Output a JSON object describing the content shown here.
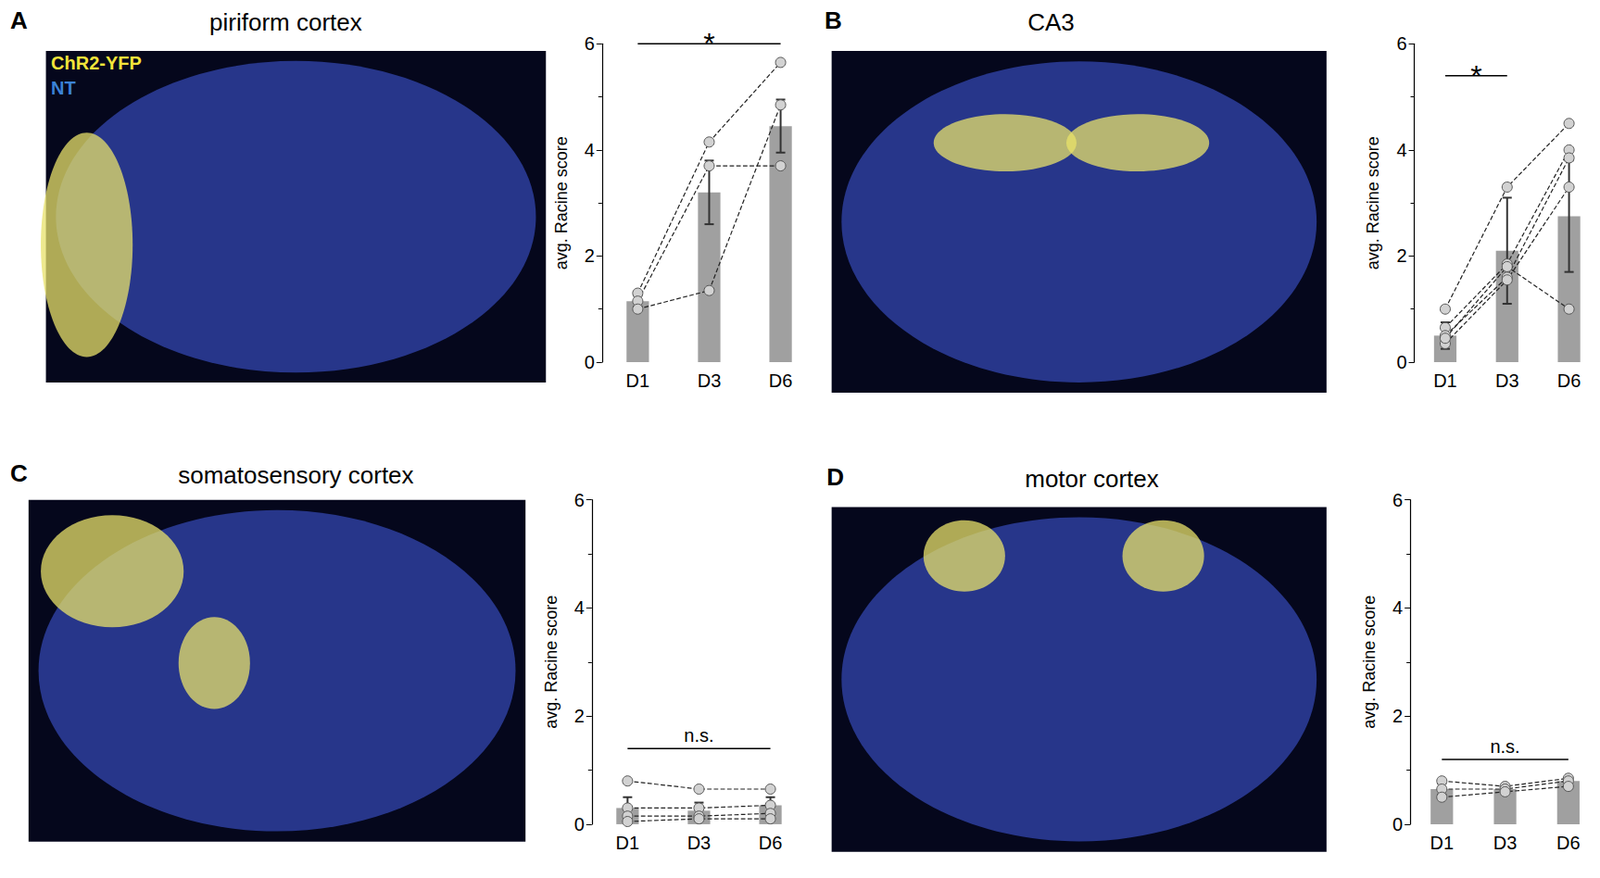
{
  "chart_data": [
    {
      "panel": "A",
      "title": "piriform cortex",
      "type": "bar",
      "image_legend": [
        {
          "text": "ChR2-YFP",
          "color": "#f2e43a"
        },
        {
          "text": "NT",
          "color": "#3b82d6"
        }
      ],
      "categories": [
        "D1",
        "D3",
        "D6"
      ],
      "values": [
        1.15,
        3.2,
        4.45
      ],
      "errors": [
        0.1,
        0.6,
        0.5
      ],
      "color": "#a0a0a0",
      "marker": "circle",
      "line_style": "dashed",
      "points": [
        [
          1.3,
          4.15,
          5.65
        ],
        [
          1.15,
          3.7,
          3.7
        ],
        [
          1.0,
          1.35,
          4.85
        ]
      ],
      "ylabel": "avg. Racine score",
      "ylim": [
        0,
        6
      ],
      "yticks": [
        0,
        2,
        4,
        6
      ],
      "annotations": [
        {
          "text": "*",
          "from": "D1",
          "to": "D6",
          "y": 6.0
        }
      ]
    },
    {
      "panel": "B",
      "title": "CA3",
      "type": "bar",
      "categories": [
        "D1",
        "D3",
        "D6"
      ],
      "values": [
        0.5,
        2.1,
        2.75
      ],
      "errors": [
        0.25,
        1.0,
        1.05
      ],
      "color": "#a0a0a0",
      "marker": "circle",
      "line_style": "dashed",
      "points": [
        [
          1.0,
          3.3,
          4.5
        ],
        [
          0.65,
          1.85,
          4.0
        ],
        [
          0.5,
          1.6,
          3.85
        ],
        [
          0.35,
          1.55,
          3.3
        ],
        [
          0.45,
          1.8,
          1.0
        ]
      ],
      "ylabel": "avg. Racine score",
      "ylim": [
        0,
        6
      ],
      "yticks": [
        0,
        2,
        4,
        6
      ],
      "annotations": [
        {
          "text": "*",
          "from": "D1",
          "to": "D3",
          "y": 5.4
        }
      ]
    },
    {
      "panel": "C",
      "title": "somatosensory cortex",
      "type": "bar",
      "categories": [
        "D1",
        "D3",
        "D6"
      ],
      "values": [
        0.3,
        0.25,
        0.35
      ],
      "errors": [
        0.2,
        0.15,
        0.15
      ],
      "color": "#a0a0a0",
      "marker": "circle",
      "line_style": "dashed",
      "points": [
        [
          0.8,
          0.65,
          0.65
        ],
        [
          0.3,
          0.3,
          0.35
        ],
        [
          0.15,
          0.15,
          0.2
        ],
        [
          0.05,
          0.1,
          0.1
        ]
      ],
      "ylabel": "avg. Racine score",
      "ylim": [
        0,
        6
      ],
      "yticks": [
        0,
        2,
        4,
        6
      ],
      "annotations": [
        {
          "text": "n.s.",
          "from": "D1",
          "to": "D6",
          "y": 1.4
        }
      ]
    },
    {
      "panel": "D",
      "title": "motor cortex",
      "type": "bar",
      "categories": [
        "D1",
        "D3",
        "D6"
      ],
      "values": [
        0.65,
        0.65,
        0.8
      ],
      "errors": [
        0.1,
        0.05,
        0.05
      ],
      "color": "#a0a0a0",
      "marker": "circle",
      "line_style": "dashed",
      "points": [
        [
          0.8,
          0.7,
          0.85
        ],
        [
          0.65,
          0.65,
          0.8
        ],
        [
          0.5,
          0.6,
          0.7
        ]
      ],
      "ylabel": "avg. Racine score",
      "ylim": [
        0,
        6
      ],
      "yticks": [
        0,
        2,
        4,
        6
      ],
      "annotations": [
        {
          "text": "n.s.",
          "from": "D1",
          "to": "D6",
          "y": 1.2
        }
      ]
    }
  ]
}
